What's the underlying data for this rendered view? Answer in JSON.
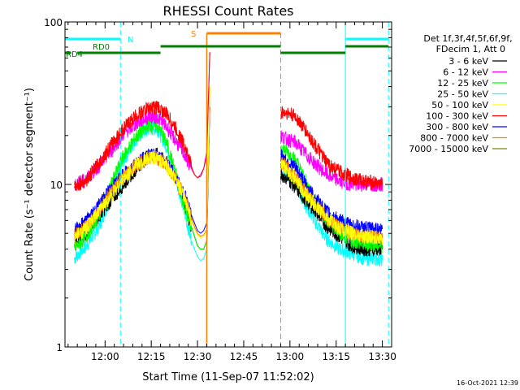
{
  "chart_data": {
    "type": "line",
    "title": "RHESSI Count Rates",
    "xlabel": "Start Time (11-Sep-07 11:52:02)",
    "ylabel": "Count Rate (s⁻¹ detector segment⁻¹)",
    "yscale": "log",
    "ylim": [
      1,
      100
    ],
    "xlim_minutes": [
      -5,
      101
    ],
    "x_ticks": [
      {
        "m": 8,
        "label": "12:00"
      },
      {
        "m": 23,
        "label": "12:15"
      },
      {
        "m": 38,
        "label": "12:30"
      },
      {
        "m": 53,
        "label": "12:45"
      },
      {
        "m": 68,
        "label": "13:00"
      },
      {
        "m": 83,
        "label": "13:15"
      },
      {
        "m": 98,
        "label": "13:30"
      }
    ],
    "y_ticks": [
      {
        "v": 1,
        "label": "1"
      },
      {
        "v": 10,
        "label": "10"
      },
      {
        "v": 100,
        "label": "100"
      }
    ],
    "legend": {
      "placement": "right",
      "header": [
        "Det 1f,3f,4f,5f,6f,9f,",
        "FDecim 1, Att 0"
      ]
    },
    "series": [
      {
        "name": "3 - 6 keV",
        "color": "#000000",
        "x": [
          -2,
          2,
          6,
          10,
          14,
          18,
          22,
          25,
          28,
          31,
          34,
          36,
          37,
          38,
          39,
          40,
          41,
          42,
          65,
          67,
          70,
          73,
          76,
          80,
          84,
          88,
          92,
          96,
          98
        ],
        "y": [
          4.5,
          5.0,
          6.4,
          8.0,
          10.0,
          12.5,
          15.0,
          15.2,
          13.5,
          11.0,
          7.5,
          5.5,
          4.8,
          4.2,
          4.0,
          4.0,
          4.5,
          30,
          11.5,
          11.0,
          9.5,
          8.0,
          7.0,
          5.5,
          4.8,
          4.2,
          4.0,
          4.0,
          4.0
        ]
      },
      {
        "name": "6 - 12 keV",
        "color": "#ff00ff",
        "x": [
          -2,
          2,
          6,
          10,
          14,
          18,
          22,
          25,
          28,
          31,
          34,
          36,
          37,
          38,
          39,
          40,
          41,
          42,
          65,
          67,
          70,
          73,
          76,
          80,
          84,
          88,
          92,
          96,
          98
        ],
        "y": [
          10.0,
          10.8,
          13.0,
          16.0,
          20.5,
          23.5,
          26.0,
          26.0,
          22.5,
          18.5,
          15.0,
          12.5,
          11.5,
          11.0,
          11.5,
          12.5,
          16.0,
          65,
          20.0,
          19.0,
          18.0,
          15.5,
          13.5,
          11.5,
          10.5,
          10.0,
          10.0,
          10.0,
          10.0
        ]
      },
      {
        "name": "12 - 25 keV",
        "color": "#00ff00",
        "x": [
          -2,
          2,
          6,
          10,
          14,
          18,
          22,
          25,
          28,
          31,
          34,
          36,
          37,
          38,
          39,
          40,
          41,
          42,
          65,
          67,
          70,
          73,
          76,
          80,
          84,
          88,
          92,
          96,
          98
        ],
        "y": [
          4.0,
          4.8,
          6.5,
          10.0,
          15.0,
          19.5,
          23.0,
          23.0,
          18.0,
          11.5,
          7.0,
          5.5,
          4.8,
          4.2,
          4.0,
          4.0,
          4.5,
          40,
          17.0,
          16.0,
          14.0,
          10.5,
          8.0,
          6.0,
          5.0,
          4.5,
          4.3,
          4.2,
          4.2
        ]
      },
      {
        "name": "25 - 50 keV",
        "color": "#00ffff",
        "x": [
          -2,
          2,
          6,
          10,
          14,
          18,
          22,
          25,
          28,
          31,
          34,
          36,
          37,
          38,
          39,
          40,
          41,
          42,
          65,
          67,
          70,
          73,
          76,
          80,
          84,
          88,
          92,
          96,
          98
        ],
        "y": [
          3.5,
          4.2,
          5.5,
          8.5,
          14.0,
          19.0,
          22.0,
          22.0,
          17.0,
          11.0,
          6.5,
          4.5,
          4.0,
          3.6,
          3.4,
          3.5,
          4.0,
          35,
          12.5,
          11.5,
          10.0,
          7.5,
          6.0,
          4.6,
          4.0,
          3.8,
          3.5,
          3.5,
          3.4
        ]
      },
      {
        "name": "50 - 100 keV",
        "color": "#ffff00",
        "x": [
          -2,
          2,
          6,
          10,
          14,
          18,
          22,
          25,
          28,
          31,
          34,
          36,
          37,
          38,
          39,
          40,
          41,
          42,
          65,
          67,
          70,
          73,
          76,
          80,
          84,
          88,
          92,
          96,
          98
        ],
        "y": [
          4.7,
          5.4,
          6.8,
          8.6,
          10.8,
          13.0,
          14.5,
          14.5,
          13.0,
          10.5,
          8.0,
          6.0,
          5.3,
          4.9,
          4.7,
          4.8,
          5.2,
          40,
          13.0,
          12.5,
          10.5,
          8.8,
          7.5,
          6.2,
          5.4,
          5.0,
          4.8,
          4.7,
          4.7
        ]
      },
      {
        "name": "100 - 300 keV",
        "color": "#ff0000",
        "x": [
          -2,
          2,
          6,
          10,
          14,
          18,
          22,
          25,
          28,
          31,
          34,
          36,
          37,
          38,
          39,
          40,
          41,
          42,
          65,
          67,
          70,
          73,
          76,
          80,
          84,
          88,
          92,
          96,
          98
        ],
        "y": [
          9.8,
          10.6,
          13.5,
          17.5,
          22.0,
          26.5,
          29.5,
          30.0,
          27.0,
          22.0,
          17.0,
          13.0,
          11.5,
          11.0,
          11.2,
          12.5,
          15.0,
          65,
          28.0,
          27.5,
          26.0,
          21.5,
          17.5,
          13.5,
          12.0,
          11.0,
          10.5,
          10.2,
          10.0
        ]
      },
      {
        "name": "300 - 800 keV",
        "color": "#0000ff",
        "x": [
          -2,
          2,
          6,
          10,
          14,
          18,
          22,
          25,
          28,
          31,
          34,
          36,
          37,
          38,
          39,
          40,
          41,
          42,
          65,
          67,
          70,
          73,
          76,
          80,
          84,
          88,
          92,
          96,
          98
        ],
        "y": [
          5.2,
          6.0,
          7.5,
          9.5,
          11.5,
          13.5,
          15.0,
          15.0,
          13.5,
          11.0,
          8.5,
          6.5,
          5.8,
          5.2,
          5.0,
          5.2,
          5.8,
          30,
          15.0,
          14.0,
          12.5,
          10.0,
          8.3,
          6.8,
          6.0,
          5.6,
          5.4,
          5.3,
          5.3
        ]
      },
      {
        "name": "800 - 7000 keV",
        "color": "#ff8000",
        "x": [
          -2,
          2,
          6,
          10,
          14,
          18,
          22,
          25,
          28,
          31,
          34,
          36,
          37,
          38,
          39,
          40,
          41,
          42,
          65,
          67,
          70,
          73,
          76,
          80,
          84,
          88,
          92,
          96,
          98
        ],
        "y": [
          4.8,
          5.5,
          7.0,
          9.0,
          11.0,
          13.2,
          14.5,
          14.5,
          13.2,
          10.8,
          8.2,
          6.3,
          5.5,
          5.0,
          4.8,
          4.9,
          5.3,
          30,
          13.5,
          13.0,
          11.0,
          9.0,
          7.6,
          6.2,
          5.5,
          5.0,
          4.8,
          4.7,
          4.7
        ]
      },
      {
        "name": "7000 - 15000 keV",
        "color": "#808000",
        "x": [],
        "y": []
      }
    ],
    "annotations": {
      "attenuator_bars": [
        {
          "label": "RD4",
          "color": "#007f00",
          "level": "low"
        },
        {
          "label": "RD0",
          "color": "#007f00",
          "level": "mid"
        },
        {
          "label": "N",
          "color": "#00ffff",
          "level": "high"
        },
        {
          "label": "S",
          "color": "#ff8000",
          "level": "high"
        }
      ],
      "vlines_cyan_solid_m": [
        -5,
        86
      ],
      "vlines_cyan_dashed_m": [
        13,
        100
      ],
      "vlines_orange_solid_m": [
        41
      ],
      "vlines_orange_dashed_m": [
        65
      ]
    },
    "grid": false
  },
  "footer": {
    "date": "16-Oct-2021 12:39"
  }
}
